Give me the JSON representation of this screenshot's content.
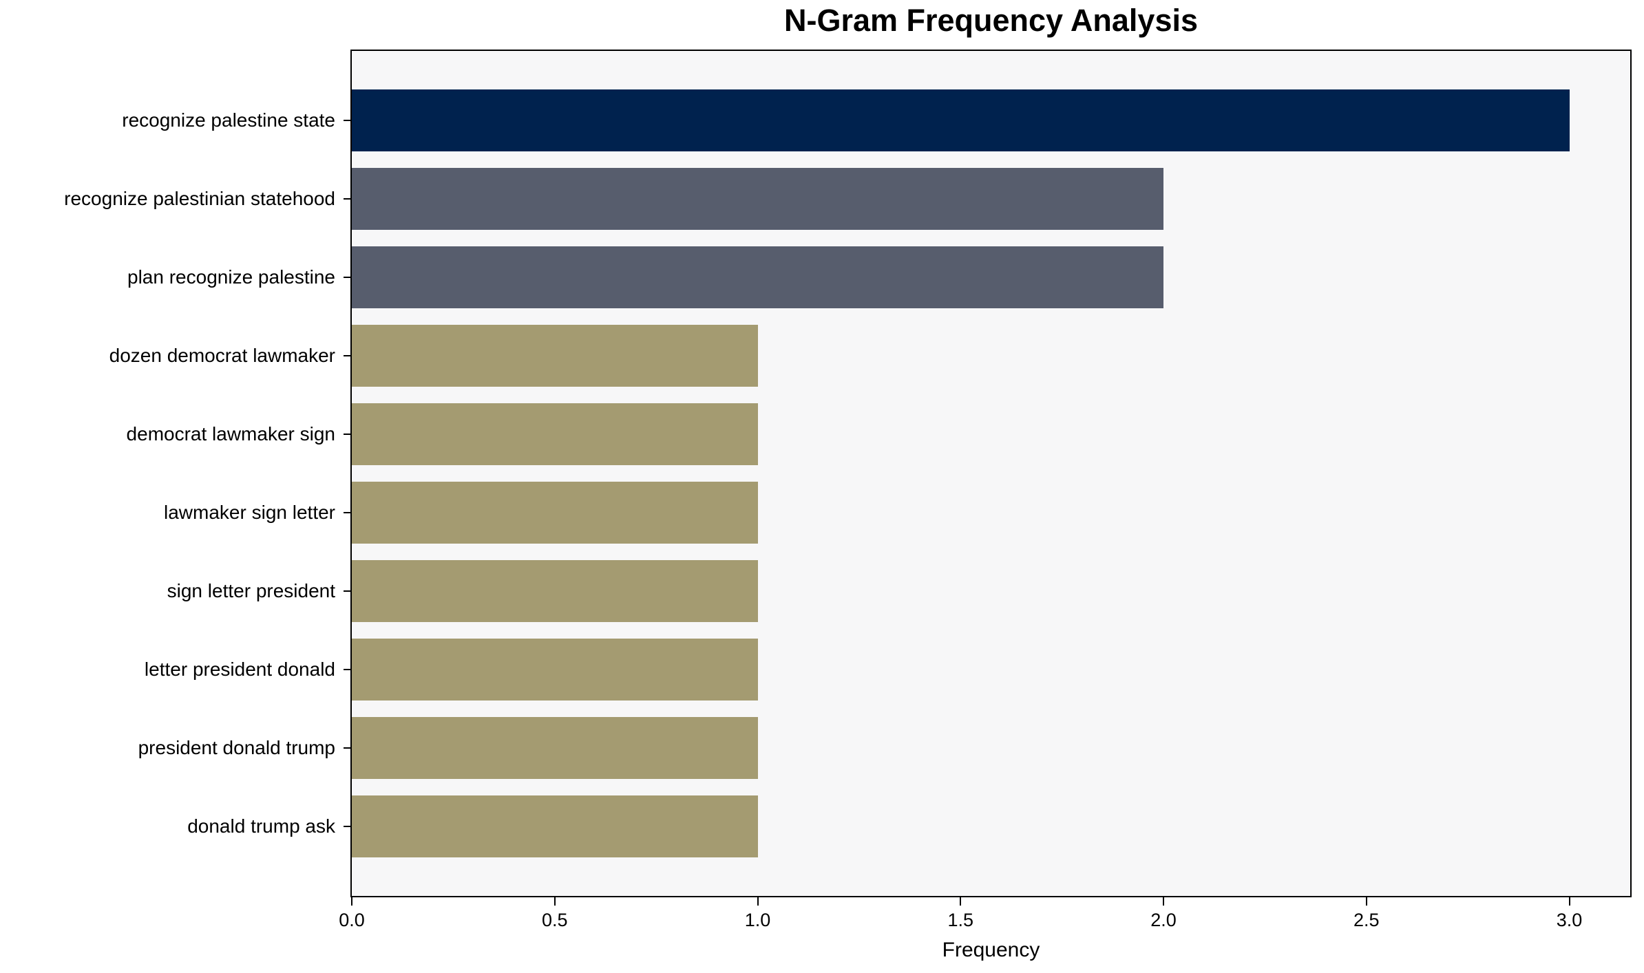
{
  "figure": {
    "background": "#ffffff",
    "plot_background": "#f7f7f8",
    "frame_color": "#000000"
  },
  "chart_data": {
    "type": "bar",
    "orientation": "horizontal",
    "title": "N-Gram Frequency Analysis",
    "xlabel": "Frequency",
    "ylabel": "",
    "categories": [
      "recognize palestine state",
      "recognize palestinian statehood",
      "plan recognize palestine",
      "dozen democrat lawmaker",
      "democrat lawmaker sign",
      "lawmaker sign letter",
      "sign letter president",
      "letter president donald",
      "president donald trump",
      "donald trump ask"
    ],
    "values": [
      3,
      2,
      2,
      1,
      1,
      1,
      1,
      1,
      1,
      1
    ],
    "bar_colors": [
      "#00224e",
      "#575d6d",
      "#575d6d",
      "#a49b71",
      "#a49b71",
      "#a49b71",
      "#a49b71",
      "#a49b71",
      "#a49b71",
      "#a49b71"
    ],
    "xlim": [
      0,
      3.15
    ],
    "xticks": [
      0.0,
      0.5,
      1.0,
      1.5,
      2.0,
      2.5,
      3.0
    ],
    "xtick_labels": [
      "0.0",
      "0.5",
      "1.0",
      "1.5",
      "2.0",
      "2.5",
      "3.0"
    ],
    "grid": false,
    "legend_position": "none"
  }
}
